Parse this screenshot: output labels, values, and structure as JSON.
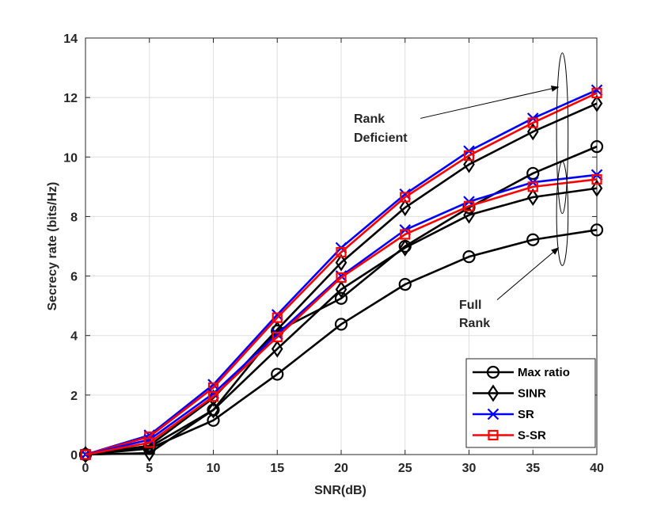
{
  "chart_data": {
    "type": "line",
    "title": "",
    "xlabel": "SNR(dB)",
    "ylabel": "Secrecy rate (bits/Hz)",
    "xlim": [
      0,
      40
    ],
    "ylim": [
      0,
      14
    ],
    "xticks": [
      "0",
      "5",
      "10",
      "15",
      "20",
      "25",
      "30",
      "35",
      "40"
    ],
    "yticks": [
      "0",
      "2",
      "4",
      "6",
      "8",
      "10",
      "12",
      "14"
    ],
    "grid": true,
    "legend_position": "bottom-right",
    "x": [
      0,
      5,
      10,
      15,
      20,
      25,
      30,
      35,
      40
    ],
    "series": [
      {
        "name": "Max ratio",
        "group": "Rank Deficient",
        "color": "#000000",
        "marker": "circle",
        "values": [
          0,
          0.25,
          1.5,
          4.15,
          5.25,
          7.0,
          8.3,
          9.45,
          10.35
        ]
      },
      {
        "name": "SINR",
        "group": "Rank Deficient",
        "color": "#000000",
        "marker": "diamond",
        "values": [
          0,
          0.3,
          1.9,
          4.2,
          6.45,
          8.3,
          9.75,
          10.85,
          11.8
        ]
      },
      {
        "name": "SR",
        "group": "Rank Deficient",
        "color": "#0000ff",
        "marker": "x",
        "values": [
          0,
          0.65,
          2.35,
          4.7,
          6.95,
          8.75,
          10.2,
          11.3,
          12.25
        ]
      },
      {
        "name": "S-SR",
        "group": "Rank Deficient",
        "color": "#ff0000",
        "marker": "square",
        "values": [
          0,
          0.6,
          2.25,
          4.6,
          6.8,
          8.65,
          10.05,
          11.15,
          12.15
        ]
      },
      {
        "name": "Max ratio",
        "group": "Full Rank",
        "color": "#000000",
        "marker": "circle",
        "values": [
          0,
          0.2,
          1.15,
          2.7,
          4.38,
          5.72,
          6.65,
          7.22,
          7.55
        ]
      },
      {
        "name": "SINR",
        "group": "Full Rank",
        "color": "#000000",
        "marker": "diamond",
        "values": [
          0,
          0.05,
          1.5,
          3.55,
          5.55,
          6.95,
          8.05,
          8.65,
          8.95
        ]
      },
      {
        "name": "SR",
        "group": "Full Rank",
        "color": "#0000ff",
        "marker": "x",
        "values": [
          0,
          0.5,
          2.05,
          4.05,
          6.0,
          7.55,
          8.5,
          9.15,
          9.4
        ]
      },
      {
        "name": "S-SR",
        "group": "Full Rank",
        "color": "#ff0000",
        "marker": "square",
        "values": [
          0,
          0.4,
          1.95,
          3.95,
          5.95,
          7.4,
          8.35,
          9.0,
          9.25
        ]
      }
    ],
    "legend": [
      {
        "name": "Max ratio",
        "color": "#000000",
        "marker": "circle"
      },
      {
        "name": "SINR",
        "color": "#000000",
        "marker": "diamond"
      },
      {
        "name": "SR",
        "color": "#0000ff",
        "marker": "x"
      },
      {
        "name": "S-SR",
        "color": "#ff0000",
        "marker": "square"
      }
    ],
    "annotations": {
      "rank_deficient": [
        "Rank",
        "Deficient"
      ],
      "full_rank": [
        "Full",
        "Rank"
      ]
    },
    "ellipses": [
      {
        "group": "Rank Deficient",
        "x_center": 37.3,
        "y_center": 10.8,
        "x_radius": 0.45,
        "y_radius": 2.7
      },
      {
        "group": "Full Rank",
        "x_center": 37.3,
        "y_center": 8.1,
        "x_radius": 0.45,
        "y_radius": 1.75
      }
    ],
    "arrows": [
      {
        "group": "Rank Deficient",
        "from": [
          26.2,
          11.3
        ],
        "to": [
          37.0,
          12.35
        ]
      },
      {
        "group": "Full Rank",
        "from": [
          32.2,
          5.2
        ],
        "to": [
          37.0,
          6.95
        ]
      }
    ]
  }
}
